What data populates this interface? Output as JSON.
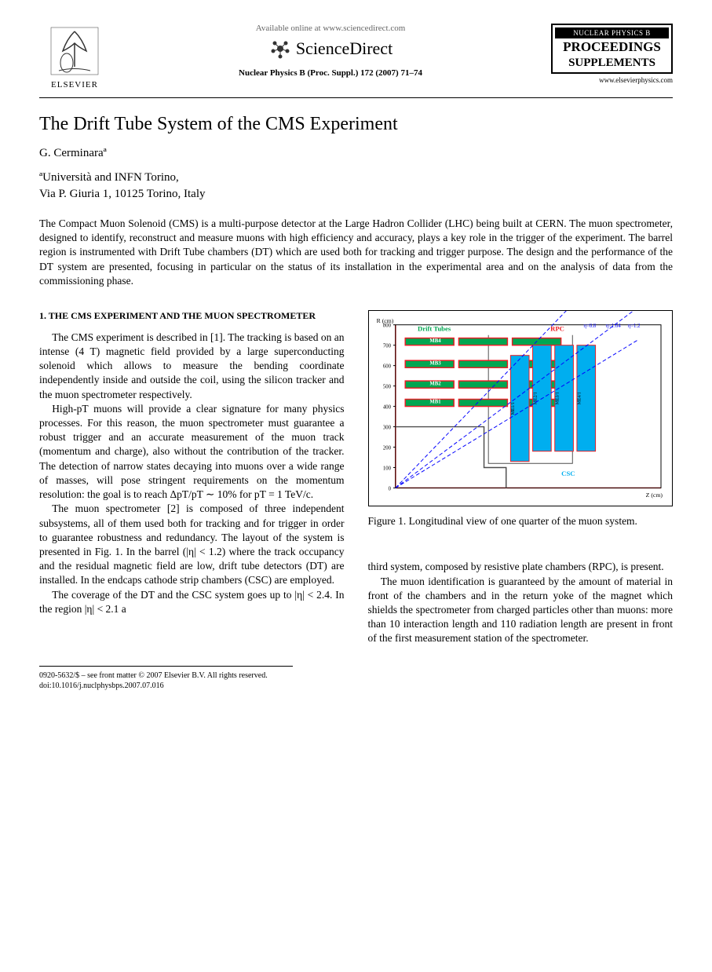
{
  "header": {
    "elsevier_label": "ELSEVIER",
    "available_text": "Available online at www.sciencedirect.com",
    "sciencedirect_label": "ScienceDirect",
    "journal_reference": "Nuclear Physics B (Proc. Suppl.) 172 (2007) 71–74",
    "nucl_phys_b": "NUCLEAR PHYSICS B",
    "proceedings": "PROCEEDINGS",
    "supplements": "SUPPLEMENTS",
    "elsevier_url": "www.elsevierphysics.com"
  },
  "article": {
    "title": "The Drift Tube System of the CMS Experiment",
    "author": "G. Cerminaraª",
    "affiliation_line1": "ªUniversità and INFN Torino,",
    "affiliation_line2": "Via P. Giuria 1, 10125 Torino, Italy",
    "abstract": "The Compact Muon Solenoid (CMS) is a multi-purpose detector at the Large Hadron Collider (LHC) being built at CERN. The muon spectrometer, designed to identify, reconstruct and measure muons with high efficiency and accuracy, plays a key role in the trigger of the experiment. The barrel region is instrumented with Drift Tube chambers (DT) which are used both for tracking and trigger purpose. The design and the performance of the DT system are presented, focusing in particular on the status of its installation in the experimental area and on the analysis of data from the commissioning phase."
  },
  "section1": {
    "heading": "1. THE CMS EXPERIMENT AND THE MUON SPECTROMETER",
    "p1": "The CMS experiment is described in [1]. The tracking is based on an intense (4 T) magnetic field provided by a large superconducting solenoid which allows to measure the bending coordinate independently inside and outside the coil, using the silicon tracker and the muon spectrometer respectively.",
    "p2": "High-pT muons will provide a clear signature for many physics processes. For this reason, the muon spectrometer must guarantee a robust trigger and an accurate measurement of the muon track (momentum and charge), also without the contribution of the tracker. The detection of narrow states decaying into muons over a wide range of masses, will pose stringent requirements on the momentum resolution: the goal is to reach ΔpT/pT ∼ 10% for pT = 1 TeV/c.",
    "p3": "The muon spectrometer [2] is composed of three independent subsystems, all of them used both for tracking and for trigger in order to guarantee robustness and redundancy. The layout of the system is presented in Fig. 1. In the barrel (|η| < 1.2) where the track occupancy and the residual magnetic field are low, drift tube detectors (DT) are installed. In the endcaps cathode strip chambers (CSC) are employed.",
    "p4": "The coverage of the DT and the CSC system goes up to |η| < 2.4. In the region |η| < 2.1 a",
    "p5": "third system, composed by resistive plate chambers (RPC), is present.",
    "p6": "The muon identification is guaranteed by the amount of material in front of the chambers and in the return yoke of the magnet which shields the spectrometer from charged particles other than muons: more than 10 interaction length and 110 radiation length are present in front of the first measurement station of the spectrometer."
  },
  "figure1": {
    "caption": "Figure 1. Longitudinal view of one quarter of the muon system.",
    "labels": {
      "drift_tubes": "Drift Tubes",
      "rpc": "RPC",
      "csc": "CSC",
      "mb1": "MB1",
      "mb2": "MB2",
      "mb3": "MB3",
      "mb4": "MB4",
      "me11": "ME1/1",
      "me12": "ME1/2",
      "me13": "ME1/3",
      "me21": "ME2/1",
      "me22": "ME2/2",
      "me31": "ME3/1",
      "me32": "ME3/2",
      "me41": "ME4/1",
      "me42": "ME4/2",
      "eta08": "η=0.8",
      "eta10": "η=1.04",
      "eta12": "η=1.2"
    },
    "colors": {
      "dt_green": "#00a651",
      "rpc_red": "#ed1c24",
      "csc_cyan": "#00aeef",
      "yoke_gray": "#4d4d4d",
      "eta_blue": "#0000ff",
      "axis_red": "#ff0000"
    },
    "y_ticks": [
      0,
      100,
      200,
      300,
      400,
      500,
      600,
      700,
      800
    ],
    "x_range": [
      0,
      1200
    ],
    "r_label": "R (cm)",
    "z_label": "Z (cm)",
    "mb_y_positions": [
      400,
      490,
      590,
      700
    ],
    "mb_bar_height": 35,
    "mb_x_segments": [
      [
        20,
        120
      ],
      [
        130,
        230
      ],
      [
        240,
        340
      ]
    ],
    "me_x_positions": [
      460,
      560,
      660,
      760
    ],
    "me_bar_width": 28
  },
  "footer": {
    "issn_line": "0920-5632/$ – see front matter © 2007 Elsevier B.V. All rights reserved.",
    "doi_line": "doi:10.1016/j.nuclphysbps.2007.07.016"
  }
}
